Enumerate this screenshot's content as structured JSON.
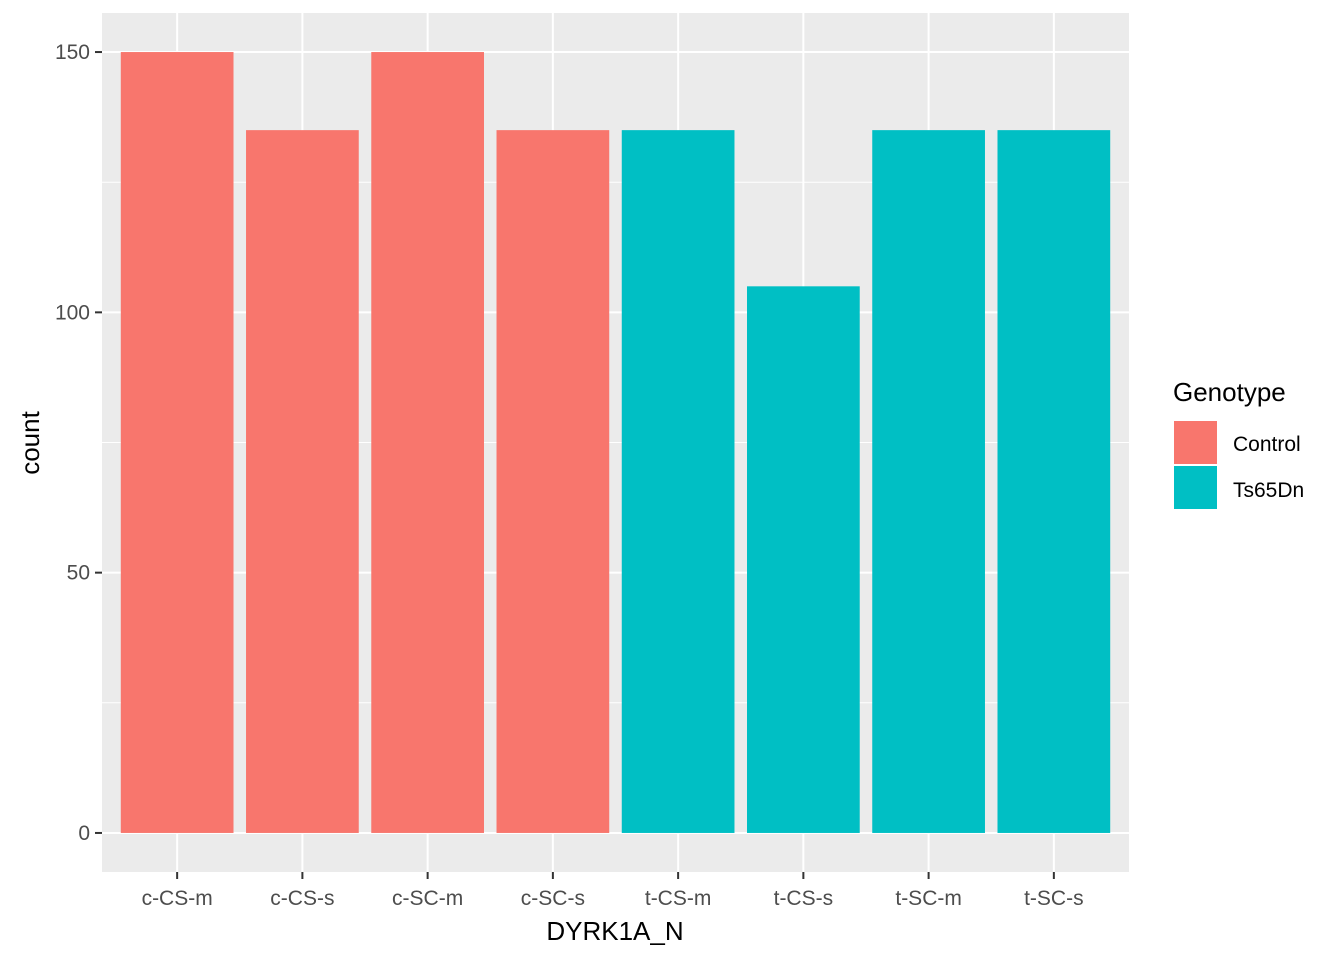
{
  "chart_data": {
    "type": "bar",
    "title": "",
    "xlabel": "DYRK1A_N",
    "ylabel": "count",
    "categories": [
      "c-CS-m",
      "c-CS-s",
      "c-SC-m",
      "c-SC-s",
      "t-CS-m",
      "t-CS-s",
      "t-SC-m",
      "t-SC-s"
    ],
    "values": [
      150,
      135,
      150,
      135,
      135,
      105,
      135,
      135
    ],
    "groups": [
      "Control",
      "Control",
      "Control",
      "Control",
      "Ts65Dn",
      "Ts65Dn",
      "Ts65Dn",
      "Ts65Dn"
    ],
    "ylim": [
      -7.5,
      157.5
    ],
    "yticks": [
      0,
      50,
      100,
      150
    ],
    "grid": true,
    "legend": {
      "title": "Genotype",
      "position": "right",
      "items": [
        {
          "label": "Control",
          "color": "#F8766D"
        },
        {
          "label": "Ts65Dn",
          "color": "#00BFC4"
        }
      ]
    },
    "colors": {
      "panel_background": "#EBEBEB",
      "grid_major": "#FFFFFF",
      "axis_text": "#4D4D4D",
      "axis_title": "#000000"
    }
  }
}
